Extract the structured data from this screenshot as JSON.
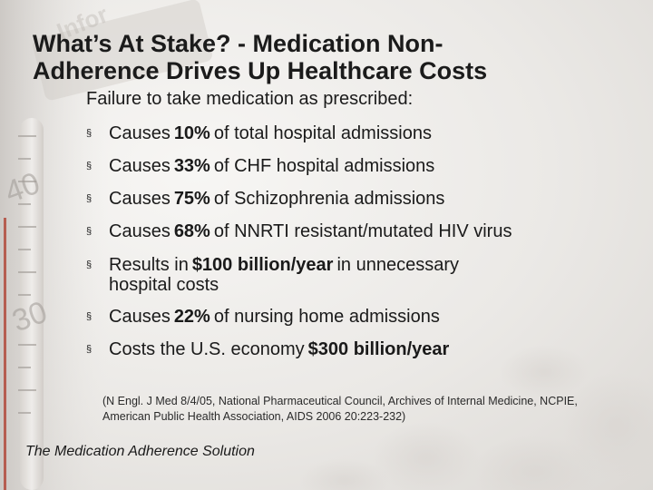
{
  "slide": {
    "title_line1": "What’s At Stake? - Medication Non-",
    "title_line2": "Adherence Drives Up Healthcare Costs",
    "intro": "Failure to take medication as prescribed:",
    "bullet_marker": "§",
    "bullets": [
      {
        "pre": "Causes",
        "bold": "10%",
        "post": "of total hospital admissions"
      },
      {
        "pre": "Causes",
        "bold": "33%",
        "post": "of CHF hospital admissions"
      },
      {
        "pre": "Causes",
        "bold": "75%",
        "post": "of Schizophrenia admissions"
      },
      {
        "pre": "Causes",
        "bold": "68%",
        "post": "of NNRTI resistant/mutated HIV virus"
      },
      {
        "pre": "Results in",
        "bold": "$100 billion/year",
        "post": "in unnecessary",
        "cont": "hospital costs"
      },
      {
        "pre": "Causes",
        "bold": "22%",
        "post": "of nursing home admissions"
      },
      {
        "pre": "Costs the U.S. economy",
        "bold": "$300 billion/year",
        "post": ""
      }
    ],
    "citation_line1": "(N Engl. J Med 8/4/05, National Pharmaceutical Council, Archives of Internal Medicine, NCPIE,",
    "citation_line2": "American Public Health Association, AIDS 2006 20:223-232)",
    "footer": "The Medication Adherence Solution"
  },
  "decoration": {
    "thermometer_numbers": [
      "40",
      "30"
    ],
    "watermark_text": "Infor"
  }
}
